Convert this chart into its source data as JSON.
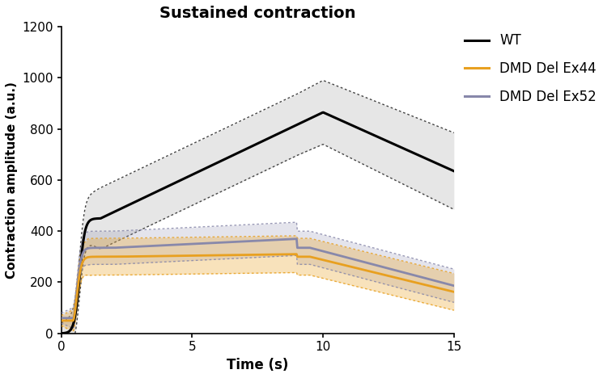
{
  "title": "Sustained contraction",
  "xlabel": "Time (s)",
  "ylabel": "Contraction amplitude (a.u.)",
  "xlim": [
    0,
    15
  ],
  "ylim": [
    0,
    1200
  ],
  "yticks": [
    0,
    200,
    400,
    600,
    800,
    1000,
    1200
  ],
  "xticks": [
    0,
    5,
    10,
    15
  ],
  "wt_color": "#000000",
  "dmd44_color": "#E8A020",
  "dmd52_color": "#8888AA",
  "wt_label": "WT",
  "dmd44_label": "DMD Del Ex44",
  "dmd52_label": "DMD Del Ex52",
  "wt_sd_color": "#AAAAAA",
  "dmd44_sd_color": "#E8A020",
  "dmd52_sd_color": "#8888AA"
}
